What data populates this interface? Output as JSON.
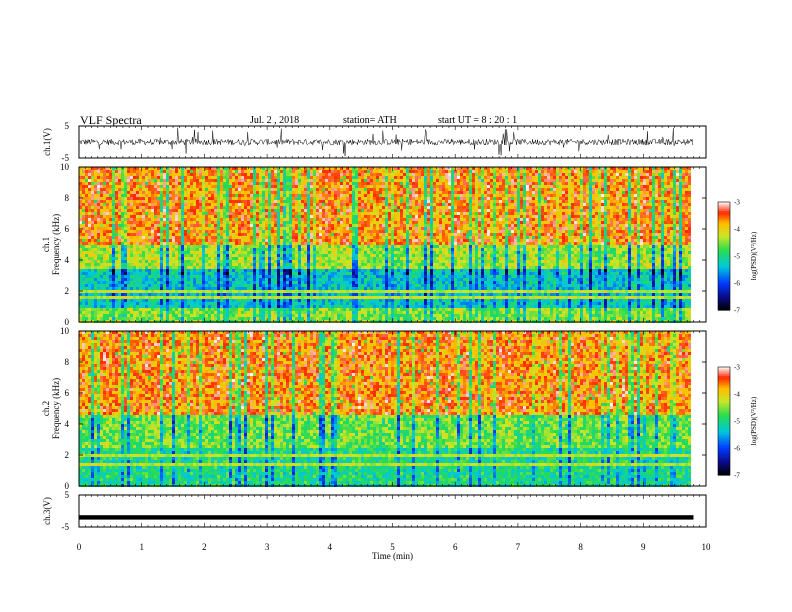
{
  "header": {
    "title": "VLF  Spectra",
    "date": "Jul.  2  , 2018",
    "station": "station= ATH",
    "start": "start  UT  =    8  : 20 : 1"
  },
  "chart_data": [
    {
      "type": "line",
      "name": "ch1-waveform",
      "ylabel": "ch.1(V)",
      "xlim": [
        0,
        10
      ],
      "ylim": [
        -5,
        5
      ],
      "yticks": [
        "5",
        "-5"
      ],
      "data_end_min": 9.8,
      "amplitude_note": "noisy waveform approx -2 to 2 V with spikes",
      "typical_amplitude": 1.6
    },
    {
      "type": "heatmap",
      "name": "ch1-spectrogram",
      "ylabel_line1": "ch.1",
      "ylabel_line2": "Frequency  (kHz)",
      "xlim": [
        0,
        10
      ],
      "ylim": [
        0,
        10
      ],
      "yticks": [
        "0",
        "2",
        "4",
        "6",
        "8",
        "10"
      ],
      "data_end_min": 9.8,
      "bands": [
        {
          "fmin": 5.0,
          "fmax": 10.0,
          "level": "high",
          "log_psd_approx": -3.6
        },
        {
          "fmin": 3.5,
          "fmax": 5.0,
          "level": "mid",
          "log_psd_approx": -4.4
        },
        {
          "fmin": 1.0,
          "fmax": 3.5,
          "level": "low",
          "log_psd_approx": -5.3
        },
        {
          "fmin": 0.0,
          "fmax": 1.0,
          "level": "lines",
          "log_psd_approx": -4.5
        }
      ],
      "colorbar": {
        "label": "log(PSD)(V²/Hz)",
        "ticks": [
          "-3",
          "-4",
          "-5",
          "-6",
          "-7"
        ],
        "range": [
          -7,
          -3
        ]
      }
    },
    {
      "type": "heatmap",
      "name": "ch2-spectrogram",
      "ylabel_line1": "ch.2",
      "ylabel_line2": "Frequency  (kHz)",
      "xlim": [
        0,
        10
      ],
      "ylim": [
        0,
        10
      ],
      "yticks": [
        "0",
        "2",
        "4",
        "6",
        "8",
        "10"
      ],
      "data_end_min": 9.8,
      "bands": [
        {
          "fmin": 4.5,
          "fmax": 10.0,
          "level": "high",
          "log_psd_approx": -3.6
        },
        {
          "fmin": 2.5,
          "fmax": 4.5,
          "level": "mid",
          "log_psd_approx": -4.6
        },
        {
          "fmin": 0.0,
          "fmax": 2.5,
          "level": "low-lines",
          "log_psd_approx": -5.0
        }
      ],
      "colorbar": {
        "label": "log(PSD)(V²/Hz)",
        "ticks": [
          "-3",
          "-4",
          "-5",
          "-6",
          "-7"
        ],
        "range": [
          -7,
          -3
        ]
      }
    },
    {
      "type": "line",
      "name": "ch3-waveform",
      "ylabel": "ch.3(V)",
      "xlim": [
        0,
        10
      ],
      "ylim": [
        -5,
        5
      ],
      "yticks": [
        "5",
        "-5"
      ],
      "data_end_min": 9.8,
      "level_v": -2.0,
      "xlabel": "Time  (min)",
      "xticks": [
        "0",
        "1",
        "2",
        "3",
        "4",
        "5",
        "6",
        "7",
        "8",
        "9",
        "10"
      ]
    }
  ]
}
